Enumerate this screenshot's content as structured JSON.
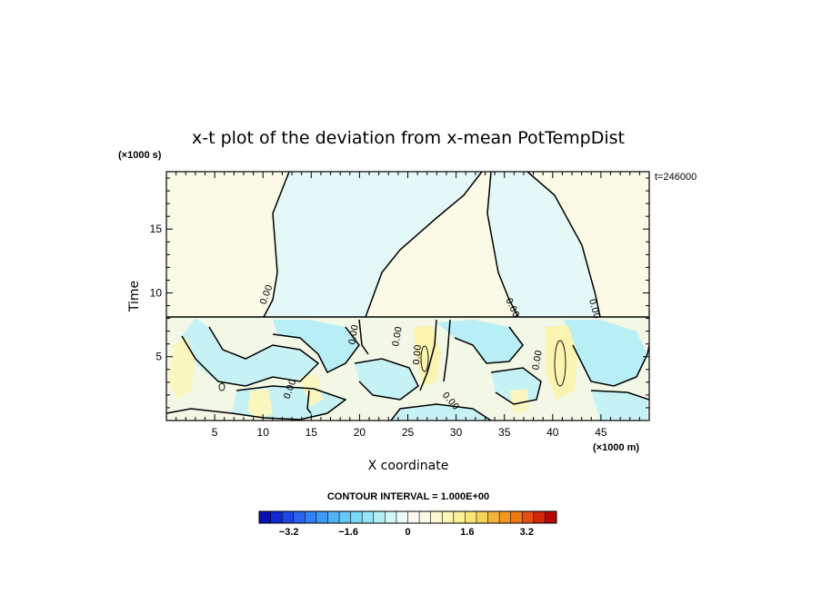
{
  "chart_data": {
    "type": "heatmap",
    "title": "x-t plot of the deviation from x-mean PotTempDist",
    "xlabel": "X coordinate",
    "ylabel": "Time",
    "x_unit": "(×1000 m)",
    "y_unit": "(×1000 s)",
    "timestamp": "t=246000",
    "xlim": [
      0,
      50
    ],
    "ylim": [
      0,
      19.5
    ],
    "x_ticks": [
      5,
      10,
      15,
      20,
      25,
      30,
      35,
      40,
      45
    ],
    "y_ticks": [
      5,
      10,
      15
    ],
    "contour_interval_text": "CONTOUR INTERVAL = 1.000E+00",
    "contour_label": "0.00",
    "colorbar": {
      "min": -4.0,
      "max": 4.0,
      "tick_values": [
        -3.2,
        -1.6,
        0,
        1.6,
        3.2
      ],
      "tick_labels": [
        "−3.2",
        "−1.6",
        "0",
        "1.6",
        "3.2"
      ],
      "colors": [
        "#0a0fb5",
        "#1428d2",
        "#1e46e6",
        "#2864f0",
        "#3282f5",
        "#3c9bf5",
        "#50b4f5",
        "#64c8f5",
        "#7ad7f5",
        "#96e4f5",
        "#b4eef5",
        "#d2f5f5",
        "#ebfaf5",
        "#fafaf0",
        "#fafae6",
        "#fafad2",
        "#fafab4",
        "#faf096",
        "#fae678",
        "#f5d25a",
        "#f5b43c",
        "#f5961e",
        "#f07814",
        "#e6500f",
        "#d2280a",
        "#b40a05"
      ]
    }
  }
}
